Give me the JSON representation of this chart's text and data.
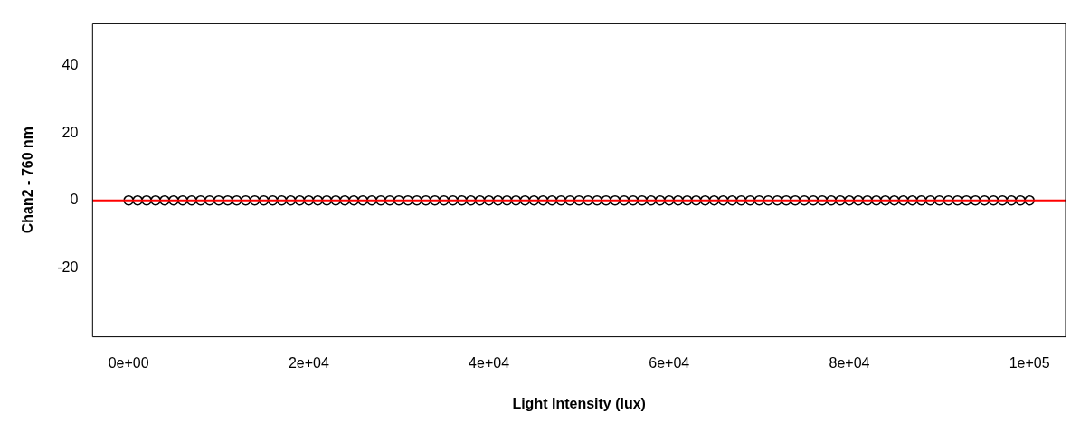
{
  "chart_data": {
    "type": "scatter",
    "xlabel": "Light Intensity (lux)",
    "ylabel": "Chan2 - 760 nm",
    "x": [
      0,
      1000,
      2000,
      3000,
      4000,
      5000,
      6000,
      7000,
      8000,
      9000,
      10000,
      11000,
      12000,
      13000,
      14000,
      15000,
      16000,
      17000,
      18000,
      19000,
      20000,
      21000,
      22000,
      23000,
      24000,
      25000,
      26000,
      27000,
      28000,
      29000,
      30000,
      31000,
      32000,
      33000,
      34000,
      35000,
      36000,
      37000,
      38000,
      39000,
      40000,
      41000,
      42000,
      43000,
      44000,
      45000,
      46000,
      47000,
      48000,
      49000,
      50000,
      51000,
      52000,
      53000,
      54000,
      55000,
      56000,
      57000,
      58000,
      59000,
      60000,
      61000,
      62000,
      63000,
      64000,
      65000,
      66000,
      67000,
      68000,
      69000,
      70000,
      71000,
      72000,
      73000,
      74000,
      75000,
      76000,
      77000,
      78000,
      79000,
      80000,
      81000,
      82000,
      83000,
      84000,
      85000,
      86000,
      87000,
      88000,
      89000,
      90000,
      91000,
      92000,
      93000,
      94000,
      95000,
      96000,
      97000,
      98000,
      99000,
      100000
    ],
    "series": [
      {
        "color": "#000000",
        "values": [
          0,
          0,
          0,
          0,
          0,
          0,
          0,
          0,
          0,
          0,
          0,
          0,
          0,
          0,
          0,
          0,
          0,
          0,
          0,
          0,
          0,
          0,
          0,
          0,
          0,
          0,
          0,
          0,
          0,
          0,
          0,
          0,
          0,
          0,
          0,
          0,
          0,
          0,
          0,
          0,
          0,
          0,
          0,
          0,
          0,
          0,
          0,
          0,
          0,
          0,
          0,
          0,
          0,
          0,
          0,
          0,
          0,
          0,
          0,
          0,
          0,
          0,
          0,
          0,
          0,
          0,
          0,
          0,
          0,
          0,
          0,
          0,
          0,
          0,
          0,
          0,
          0,
          0,
          0,
          0,
          0,
          0,
          0,
          0,
          0,
          0,
          0,
          0,
          0,
          0,
          0,
          0,
          0,
          0,
          0,
          0,
          0,
          0,
          0,
          0,
          0
        ]
      }
    ],
    "marker": "circle",
    "grid": false,
    "legend": false,
    "xlim": [
      -4000,
      104000
    ],
    "ylim": [
      -40.5,
      52.6
    ],
    "xticks": [
      {
        "value": 0,
        "label": "0e+00"
      },
      {
        "value": 20000,
        "label": "2e+04"
      },
      {
        "value": 40000,
        "label": "4e+04"
      },
      {
        "value": 60000,
        "label": "6e+04"
      },
      {
        "value": 80000,
        "label": "8e+04"
      },
      {
        "value": 100000,
        "label": "1e+05"
      }
    ],
    "yticks": [
      -20,
      0,
      20,
      40
    ],
    "ref_lines": [
      {
        "axis": "y",
        "value": 0,
        "color": "#ff0000"
      }
    ]
  }
}
